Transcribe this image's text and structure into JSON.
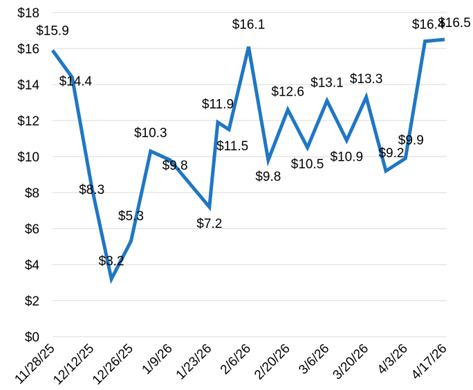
{
  "chart_data": {
    "type": "line",
    "title": "",
    "xlabel": "",
    "ylabel": "",
    "ylim": [
      0,
      18
    ],
    "y_tick_labels": [
      "$0",
      "$2",
      "$4",
      "$6",
      "$8",
      "$10",
      "$12",
      "$14",
      "$16",
      "$18"
    ],
    "y_tick_values": [
      0,
      2,
      4,
      6,
      8,
      10,
      12,
      14,
      16,
      18
    ],
    "grid": true,
    "legend": "none",
    "x_tick_labels": [
      "11/28/25",
      "12/12/25",
      "12/26/25",
      "1/9/26",
      "1/23/26",
      "2/6/26",
      "2/20/26",
      "3/6/26",
      "3/20/26",
      "4/3/26",
      "4/17/26"
    ],
    "x": [
      "11/28/25",
      "12/5/25",
      "12/12/25",
      "12/19/25",
      "12/26/25",
      "1/2/26",
      "1/9/26",
      "1/16/26",
      "1/23/26",
      "1/26/26",
      "1/30/26",
      "2/6/26",
      "2/13/26",
      "2/20/26",
      "2/27/26",
      "3/6/26",
      "3/13/26",
      "3/20/26",
      "3/27/26",
      "4/3/26",
      "4/10/26",
      "4/17/26"
    ],
    "series": [
      {
        "color": "#1f77c4",
        "values": [
          15.9,
          14.4,
          8.3,
          3.2,
          5.3,
          10.3,
          9.8,
          8.5,
          7.2,
          11.9,
          11.5,
          16.1,
          9.8,
          12.6,
          10.5,
          13.1,
          10.9,
          13.3,
          9.2,
          9.9,
          16.4,
          16.5
        ],
        "labels": [
          "$15.9",
          "$14.4",
          "$8.3",
          "$3.2",
          "$5.3",
          "$10.3",
          "$9.8",
          "",
          "$7.2",
          "$11.9",
          "$11.5",
          "$16.1",
          "$9.8",
          "$12.6",
          "$10.5",
          "$13.1",
          "$10.9",
          "$13.3",
          "$9.2",
          "$9.9",
          "$16.4",
          "$16.5"
        ]
      }
    ]
  }
}
